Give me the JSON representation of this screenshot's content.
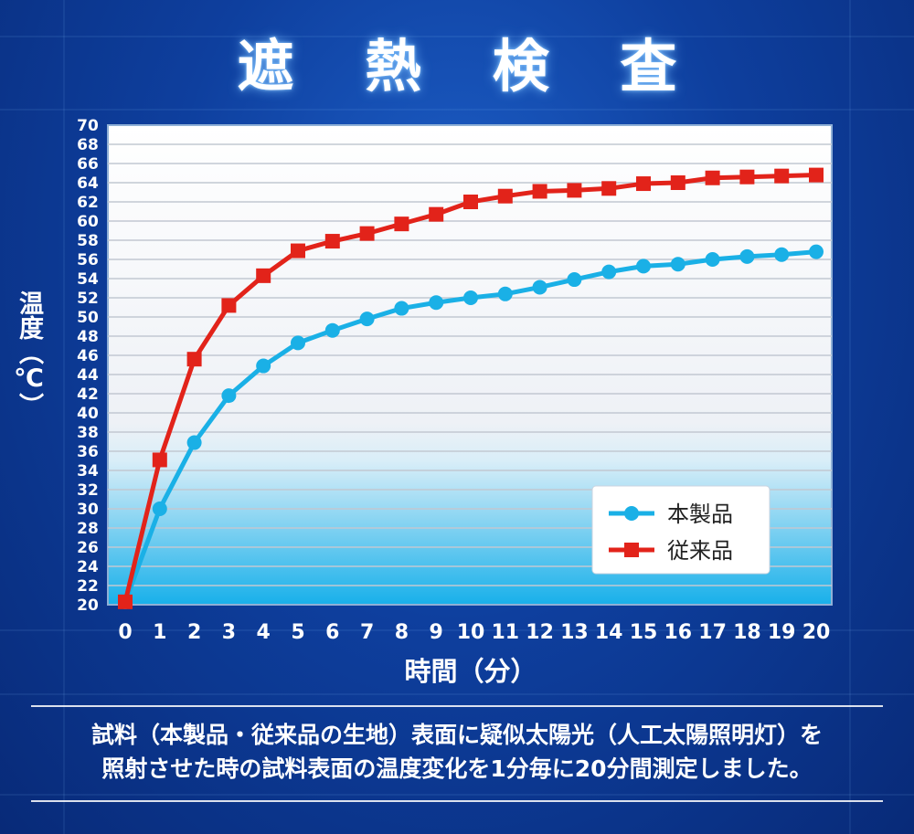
{
  "title": "遮 熱 検 査",
  "description": {
    "line1": "試料（本製品・従来品の生地）表面に疑似太陽光（人工太陽照明灯）を",
    "line2": "照射させた時の試料表面の温度変化を1分毎に20分間測定しました。"
  },
  "chart_data": {
    "type": "line",
    "xlabel": "時間（分）",
    "ylabel": "温度（℃）",
    "x": [
      0,
      1,
      2,
      3,
      4,
      5,
      6,
      7,
      8,
      9,
      10,
      11,
      12,
      13,
      14,
      15,
      16,
      17,
      18,
      19,
      20
    ],
    "ylim": [
      20,
      70
    ],
    "yticks": [
      20,
      22,
      24,
      26,
      28,
      30,
      32,
      34,
      36,
      38,
      40,
      42,
      44,
      46,
      48,
      50,
      52,
      54,
      56,
      58,
      60,
      62,
      64,
      66,
      68,
      70
    ],
    "grid": true,
    "legend_position": "bottom-right",
    "series": [
      {
        "name": "本製品",
        "color": "#1ab0e6",
        "marker": "circle",
        "values": [
          20.3,
          30.0,
          36.9,
          41.8,
          44.9,
          47.3,
          48.6,
          49.8,
          50.9,
          51.5,
          52.0,
          52.4,
          53.1,
          53.9,
          54.7,
          55.3,
          55.5,
          56.0,
          56.3,
          56.5,
          56.8
        ]
      },
      {
        "name": "従来品",
        "color": "#e2231a",
        "marker": "square",
        "values": [
          20.3,
          35.1,
          45.6,
          51.2,
          54.3,
          56.9,
          57.9,
          58.7,
          59.7,
          60.7,
          62.0,
          62.6,
          63.1,
          63.2,
          63.4,
          63.9,
          64.0,
          64.5,
          64.6,
          64.7,
          64.8
        ]
      }
    ]
  }
}
